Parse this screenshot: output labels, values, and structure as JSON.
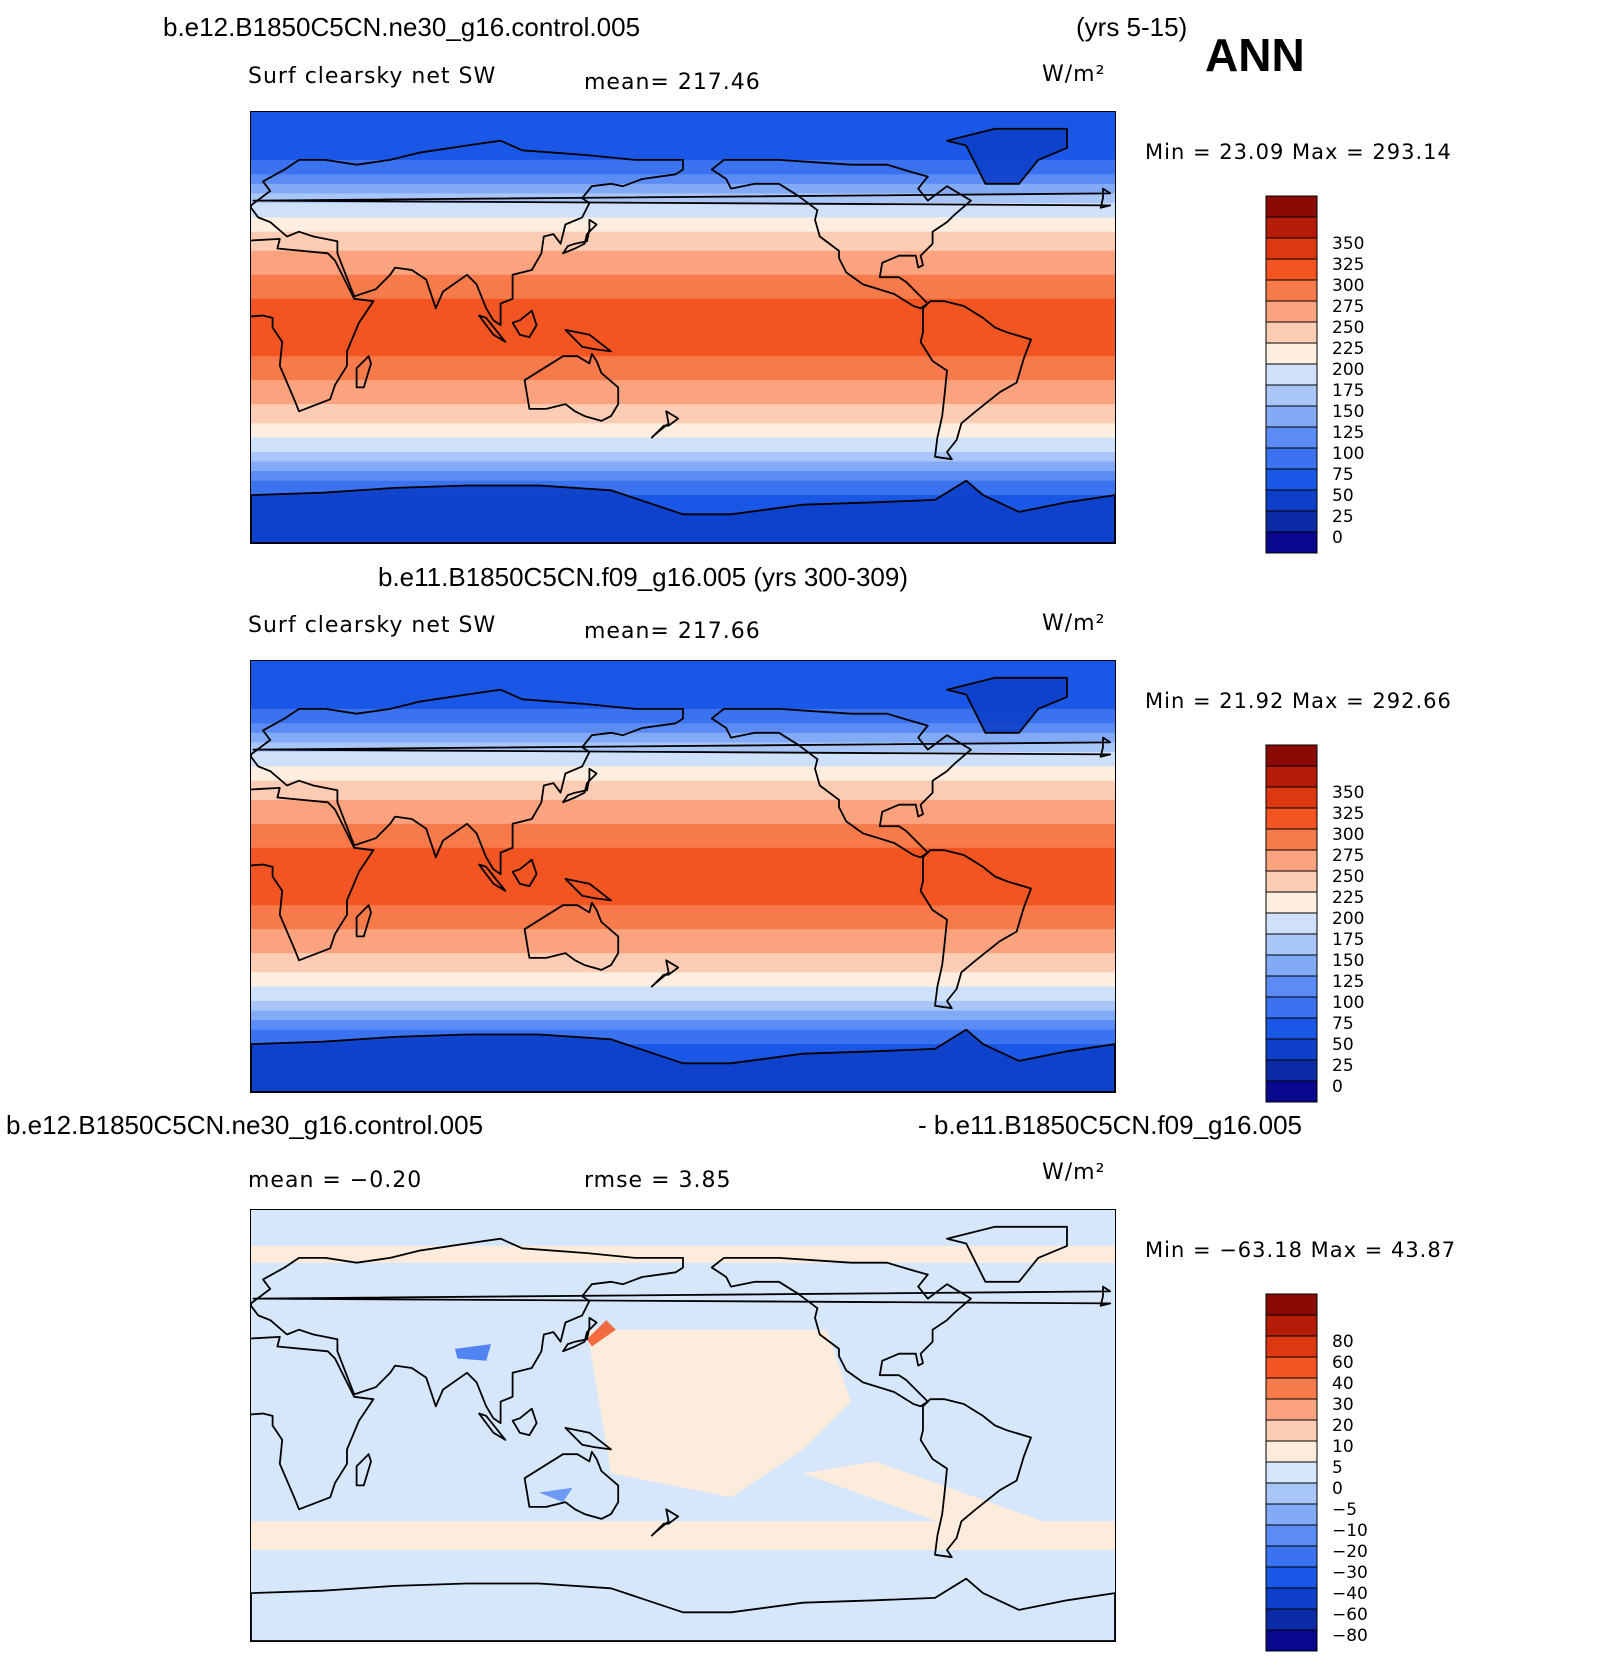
{
  "header": {
    "case_title": "b.e12.B1850C5CN.ne30_g16.control.005",
    "case_years": "(yrs 5-15)",
    "season": "ANN"
  },
  "panels": [
    {
      "id": "test",
      "title": "",
      "left_label": "Surf clearsky net SW",
      "stat_label": "mean= 217.46",
      "units": "W/m²",
      "minmax": "Min =   23.09  Max  =  293.14",
      "colorbar": {
        "colors": [
          "#08088f",
          "#0a2aa6",
          "#0d3fc9",
          "#1a57e6",
          "#3a72f0",
          "#5b8cf5",
          "#82aaf7",
          "#a9c6f9",
          "#cfe0fb",
          "#fdeee0",
          "#fccdb4",
          "#fba37f",
          "#f77a4a",
          "#f25522",
          "#de3810",
          "#b51d09",
          "#8a0a05"
        ],
        "labels": [
          "0",
          "25",
          "50",
          "75",
          "100",
          "125",
          "150",
          "175",
          "200",
          "225",
          "250",
          "275",
          "300",
          "325",
          "350"
        ]
      }
    },
    {
      "id": "control",
      "title": "b.e11.B1850C5CN.f09_g16.005 (yrs 300-309)",
      "left_label": "Surf clearsky net SW",
      "stat_label": "mean= 217.66",
      "units": "W/m²",
      "minmax": "Min =   21.92  Max  =  292.66",
      "colorbar": {
        "colors": [
          "#08088f",
          "#0a2aa6",
          "#0d3fc9",
          "#1a57e6",
          "#3a72f0",
          "#5b8cf5",
          "#82aaf7",
          "#a9c6f9",
          "#cfe0fb",
          "#fdeee0",
          "#fccdb4",
          "#fba37f",
          "#f77a4a",
          "#f25522",
          "#de3810",
          "#b51d09",
          "#8a0a05"
        ],
        "labels": [
          "0",
          "25",
          "50",
          "75",
          "100",
          "125",
          "150",
          "175",
          "200",
          "225",
          "250",
          "275",
          "300",
          "325",
          "350"
        ]
      }
    },
    {
      "id": "diff",
      "title_left": "b.e12.B1850C5CN.ne30_g16.control.005",
      "title_right": "- b.e11.B1850C5CN.f09_g16.005",
      "left_label": "mean =   −0.20",
      "stat_label": "rmse =     3.85",
      "units": "W/m²",
      "minmax": "Min = −63.18  Max  =   43.87",
      "colorbar": {
        "colors": [
          "#08088f",
          "#0a2aa6",
          "#0d3fc9",
          "#1a57e6",
          "#3a72f0",
          "#5b8cf5",
          "#82aaf7",
          "#a9c6f9",
          "#d6e6fb",
          "#fdebdc",
          "#fccdb4",
          "#fba37f",
          "#f77a4a",
          "#f25522",
          "#de3810",
          "#b51d09",
          "#8a0a05"
        ],
        "labels": [
          "−80",
          "−60",
          "−40",
          "−30",
          "−20",
          "−10",
          "−5",
          "0",
          "5",
          "10",
          "20",
          "30",
          "40",
          "60",
          "80"
        ]
      }
    }
  ]
}
